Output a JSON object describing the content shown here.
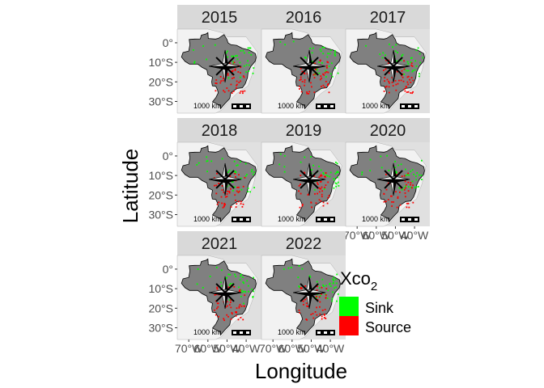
{
  "axes": {
    "xlabel": "Longitude",
    "ylabel": "Latitude",
    "y_ticks": [
      "0°",
      "10°S",
      "20°S",
      "30°S"
    ],
    "y_tick_values": [
      0,
      -10,
      -20,
      -30
    ],
    "x_ticks": [
      "70°W",
      "60°W",
      "50°W",
      "40°W"
    ],
    "x_tick_values": [
      -70,
      -60,
      -50,
      -40
    ],
    "xlim": [
      -76,
      -32
    ],
    "ylim": [
      -36,
      7
    ]
  },
  "panels": [
    {
      "year": "2015"
    },
    {
      "year": "2016"
    },
    {
      "year": "2017"
    },
    {
      "year": "2018"
    },
    {
      "year": "2019"
    },
    {
      "year": "2020"
    },
    {
      "year": "2021"
    },
    {
      "year": "2022"
    }
  ],
  "scalebar": {
    "label": "1000 km"
  },
  "legend": {
    "title_main": "Xco",
    "title_sub": "2",
    "items": [
      {
        "label": "Sink",
        "color": "#00ff00"
      },
      {
        "label": "Source",
        "color": "#ff0000"
      }
    ]
  },
  "colors": {
    "strip": "#d9d9d9",
    "panel_bg": "#e0e0e0",
    "brazil_fill": "#808080",
    "neighbor_fill": "#f2f2f2",
    "sink": "#00ff00",
    "source": "#ff0000"
  }
}
